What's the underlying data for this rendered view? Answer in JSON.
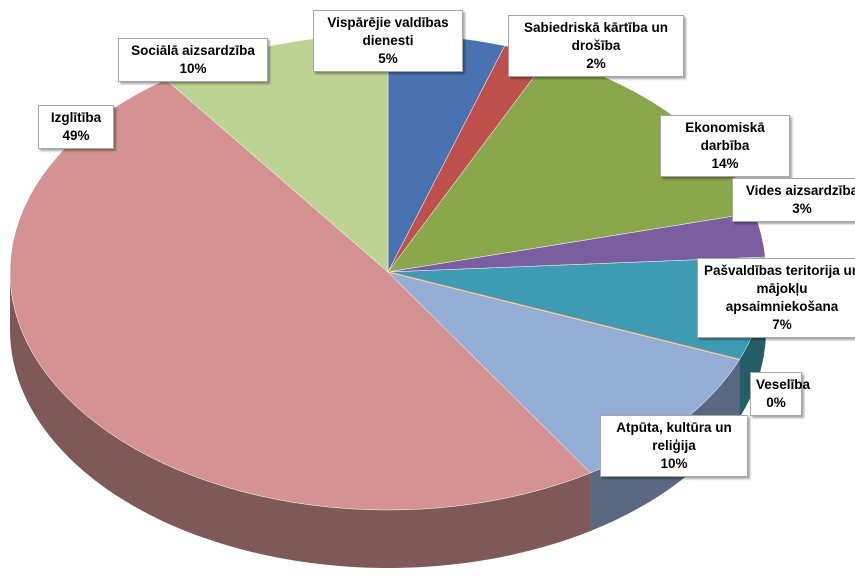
{
  "chart_data": {
    "type": "pie",
    "categories": [
      "Vispārējie valdības dienesti",
      "Sabiedriskā kārtība un drošība",
      "Ekonomiskā darbība",
      "Vides aizsardzība",
      "Pašvaldības teritorija un mājokļu apsaimniekošana",
      "Veselība",
      "Atpūta, kultūra un reliģija",
      "Izglītība",
      "Sociālā aizsardzība"
    ],
    "values": [
      5,
      2,
      14,
      3,
      7,
      0,
      10,
      49,
      10
    ],
    "value_labels": [
      "5%",
      "2%",
      "14%",
      "3%",
      "7%",
      "0%",
      "10%",
      "49%",
      "10%"
    ],
    "colors": [
      "#4a72b0",
      "#c0504d",
      "#8aa84b",
      "#7b5ea0",
      "#3d9bb3",
      "#f79646",
      "#95aed6",
      "#d49292",
      "#bcd394"
    ]
  }
}
